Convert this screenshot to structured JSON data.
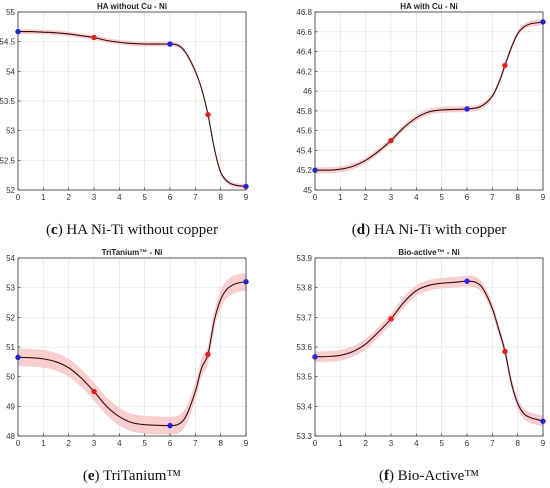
{
  "colors": {
    "line": "#3a0a0a",
    "band": "#f7c5c7",
    "endpoint": "#2222ee",
    "midpoint": "#e02020",
    "grid": "#e4e4e4"
  },
  "chart_data": [
    {
      "type": "line",
      "title": "HA without Cu - Ni",
      "caption_letter": "(c)",
      "caption_text": "HA Ni-Ti without copper",
      "xlim": [
        0,
        9
      ],
      "ylim": [
        52,
        55
      ],
      "xticks": [
        "0",
        "1",
        "2",
        "3",
        "4",
        "5",
        "6",
        "7",
        "8",
        "9"
      ],
      "yticks": [
        "52",
        "52.5",
        "53",
        "53.5",
        "54",
        "54.5",
        "55"
      ],
      "grid": true,
      "band": 0.04,
      "x": [
        0,
        0.5,
        1,
        1.5,
        2,
        2.5,
        3,
        3.5,
        4,
        4.5,
        5,
        5.5,
        6,
        6.5,
        7,
        7.25,
        7.5,
        7.75,
        8,
        8.25,
        8.5,
        8.75,
        9
      ],
      "y": [
        54.67,
        54.67,
        54.66,
        54.65,
        54.63,
        54.6,
        54.57,
        54.52,
        54.49,
        54.47,
        54.46,
        54.46,
        54.46,
        54.38,
        54.0,
        53.7,
        53.27,
        52.7,
        52.3,
        52.15,
        52.09,
        52.07,
        52.06
      ],
      "markers": [
        {
          "x": 0,
          "y": 54.67,
          "kind": "endpoint"
        },
        {
          "x": 3,
          "y": 54.57,
          "kind": "midpoint"
        },
        {
          "x": 6,
          "y": 54.46,
          "kind": "endpoint"
        },
        {
          "x": 7.5,
          "y": 53.27,
          "kind": "midpoint"
        },
        {
          "x": 9,
          "y": 52.06,
          "kind": "endpoint"
        }
      ]
    },
    {
      "type": "line",
      "title": "HA with Cu - Ni",
      "caption_letter": "(d)",
      "caption_text": "HA Ni-Ti with copper",
      "xlim": [
        0,
        9
      ],
      "ylim": [
        45,
        46.8
      ],
      "xticks": [
        "0",
        "1",
        "2",
        "3",
        "4",
        "5",
        "6",
        "7",
        "8",
        "9"
      ],
      "yticks": [
        "45",
        "45.2",
        "45.4",
        "45.6",
        "45.8",
        "46",
        "46.2",
        "46.4",
        "46.6",
        "46.8"
      ],
      "grid": true,
      "band": 0.03,
      "x": [
        0,
        0.5,
        1,
        1.5,
        2,
        2.5,
        3,
        3.5,
        4,
        4.5,
        5,
        5.5,
        6,
        6.5,
        7,
        7.25,
        7.5,
        7.75,
        8,
        8.25,
        8.5,
        8.75,
        9
      ],
      "y": [
        45.2,
        45.2,
        45.21,
        45.24,
        45.3,
        45.39,
        45.5,
        45.63,
        45.73,
        45.79,
        45.81,
        45.815,
        45.82,
        45.84,
        45.95,
        46.08,
        46.26,
        46.44,
        46.58,
        46.65,
        46.68,
        46.69,
        46.7
      ],
      "markers": [
        {
          "x": 0,
          "y": 45.2,
          "kind": "endpoint"
        },
        {
          "x": 3,
          "y": 45.5,
          "kind": "midpoint"
        },
        {
          "x": 6,
          "y": 45.82,
          "kind": "endpoint"
        },
        {
          "x": 7.5,
          "y": 46.26,
          "kind": "midpoint"
        },
        {
          "x": 9,
          "y": 46.7,
          "kind": "endpoint"
        }
      ]
    },
    {
      "type": "line",
      "title": "TriTanium™ - Ni",
      "caption_letter": "(e)",
      "caption_text": "TriTanium™",
      "xlim": [
        0,
        9
      ],
      "ylim": [
        48,
        54
      ],
      "xticks": [
        "0",
        "1",
        "2",
        "3",
        "4",
        "5",
        "6",
        "7",
        "8",
        "9"
      ],
      "yticks": [
        "48",
        "49",
        "50",
        "51",
        "52",
        "53",
        "54"
      ],
      "grid": true,
      "band": 0.3,
      "x": [
        0,
        0.5,
        1,
        1.5,
        2,
        2.5,
        3,
        3.5,
        4,
        4.5,
        5,
        5.5,
        6,
        6.5,
        7,
        7.25,
        7.5,
        7.75,
        8,
        8.25,
        8.5,
        8.75,
        9
      ],
      "y": [
        50.65,
        50.64,
        50.6,
        50.5,
        50.3,
        49.95,
        49.5,
        49.0,
        48.65,
        48.45,
        48.38,
        48.36,
        48.35,
        48.5,
        49.5,
        50.3,
        50.75,
        51.9,
        52.6,
        52.95,
        53.1,
        53.17,
        53.2
      ],
      "markers": [
        {
          "x": 0,
          "y": 50.65,
          "kind": "endpoint"
        },
        {
          "x": 3,
          "y": 49.5,
          "kind": "midpoint"
        },
        {
          "x": 6,
          "y": 48.35,
          "kind": "endpoint"
        },
        {
          "x": 7.5,
          "y": 50.75,
          "kind": "midpoint"
        },
        {
          "x": 9,
          "y": 53.2,
          "kind": "endpoint"
        }
      ]
    },
    {
      "type": "line",
      "title": "Bio-active™ - Ni",
      "caption_letter": "(f)",
      "caption_text": "Bio-Active™",
      "xlim": [
        0,
        9
      ],
      "ylim": [
        53.3,
        53.9
      ],
      "xticks": [
        "0",
        "1",
        "2",
        "3",
        "4",
        "5",
        "6",
        "7",
        "8",
        "9"
      ],
      "yticks": [
        "53.3",
        "53.4",
        "53.5",
        "53.6",
        "53.7",
        "53.8",
        "53.9"
      ],
      "grid": true,
      "band": 0.018,
      "x": [
        0,
        0.5,
        1,
        1.5,
        2,
        2.5,
        3,
        3.5,
        4,
        4.5,
        5,
        5.5,
        6,
        6.5,
        7,
        7.25,
        7.5,
        7.75,
        8,
        8.25,
        8.5,
        8.75,
        9
      ],
      "y": [
        53.567,
        53.568,
        53.572,
        53.585,
        53.61,
        53.65,
        53.695,
        53.75,
        53.79,
        53.808,
        53.815,
        53.818,
        53.822,
        53.81,
        53.73,
        53.66,
        53.585,
        53.48,
        53.41,
        53.375,
        53.362,
        53.356,
        53.35
      ],
      "markers": [
        {
          "x": 0,
          "y": 53.567,
          "kind": "endpoint"
        },
        {
          "x": 3,
          "y": 53.695,
          "kind": "midpoint"
        },
        {
          "x": 6,
          "y": 53.822,
          "kind": "endpoint"
        },
        {
          "x": 7.5,
          "y": 53.585,
          "kind": "midpoint"
        },
        {
          "x": 9,
          "y": 53.35,
          "kind": "endpoint"
        }
      ]
    }
  ]
}
